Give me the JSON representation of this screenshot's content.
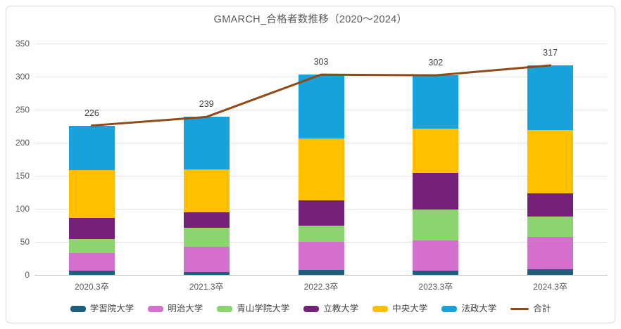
{
  "chart_data": {
    "type": "bar",
    "subtype": "stacked_bar_with_total_line",
    "title": "GMARCH_合格者数推移（2020〜2024）",
    "categories": [
      "2020.3卒",
      "2021.3卒",
      "2022.3卒",
      "2023.3卒",
      "2024.3卒"
    ],
    "stacked": true,
    "series": [
      {
        "name": "学習院大学",
        "color": "#1E5F7E",
        "values": [
          6,
          4,
          7,
          6,
          9
        ]
      },
      {
        "name": "明治大学",
        "color": "#D570CE",
        "values": [
          27,
          39,
          43,
          46,
          48
        ]
      },
      {
        "name": "青山学院大学",
        "color": "#8CD46F",
        "values": [
          21,
          28,
          25,
          47,
          31
        ]
      },
      {
        "name": "立教大学",
        "color": "#75217A",
        "values": [
          32,
          24,
          38,
          55,
          35
        ]
      },
      {
        "name": "中央大学",
        "color": "#FFC000",
        "values": [
          73,
          65,
          93,
          67,
          96
        ]
      },
      {
        "name": "法政大学",
        "color": "#18A2DC",
        "values": [
          67,
          79,
          97,
          81,
          98
        ]
      }
    ],
    "line_series": {
      "name": "合計",
      "color": "#8F4A15",
      "values": [
        226,
        239,
        303,
        302,
        317
      ],
      "data_labels": [
        "226",
        "239",
        "303",
        "302",
        "317"
      ]
    },
    "ylim": [
      0,
      350
    ],
    "yticks": [
      0,
      50,
      100,
      150,
      200,
      250,
      300,
      350
    ],
    "grid": true,
    "legend_position": "bottom",
    "xlabel": "",
    "ylabel": ""
  },
  "colors": {
    "background": "#FFFFFF",
    "border": "#D9D9D9",
    "gridline": "#E2E2E2",
    "axis_line": "#BFBFBF",
    "title_text": "#595959",
    "axis_text": "#595959",
    "data_label_text": "#3F3F3F",
    "legend_text": "#404040"
  }
}
